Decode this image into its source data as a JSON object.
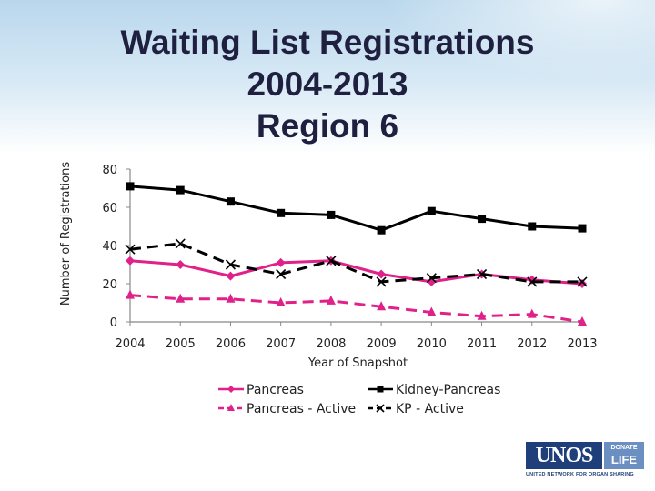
{
  "chart_data": {
    "type": "line",
    "title_lines": [
      "Waiting List Registrations",
      "2004-2013",
      "Region 6"
    ],
    "xlabel": "Year of Snapshot",
    "ylabel": "Number of Registrations",
    "x": [
      "2004",
      "2005",
      "2006",
      "2007",
      "2008",
      "2009",
      "2010",
      "2011",
      "2012",
      "2013"
    ],
    "ylim": [
      0,
      80
    ],
    "yticks": [
      "0",
      "20",
      "40",
      "60",
      "80"
    ],
    "grid": false,
    "legend_position": "bottom",
    "series": [
      {
        "name": "Pancreas",
        "values": [
          32,
          30,
          24,
          31,
          32,
          25,
          21,
          25,
          22,
          20
        ],
        "color": "#e0218a",
        "marker": "diamond",
        "dash": "solid"
      },
      {
        "name": "Kidney-Pancreas",
        "values": [
          71,
          69,
          63,
          57,
          56,
          48,
          58,
          54,
          50,
          49
        ],
        "color": "#000000",
        "marker": "square",
        "dash": "solid"
      },
      {
        "name": "Pancreas - Active",
        "values": [
          14,
          12,
          12,
          10,
          11,
          8,
          5,
          3,
          4,
          0
        ],
        "color": "#e0218a",
        "marker": "triangle",
        "dash": "dashed"
      },
      {
        "name": "KP - Active",
        "values": [
          38,
          41,
          30,
          25,
          32,
          21,
          23,
          25,
          21,
          21
        ],
        "color": "#000000",
        "marker": "x",
        "dash": "dashed"
      }
    ]
  },
  "logo": {
    "unos": "UNOS",
    "donate": "DONATE",
    "life": "LIFE",
    "tagline": "UNITED NETWORK FOR ORGAN SHARING"
  }
}
